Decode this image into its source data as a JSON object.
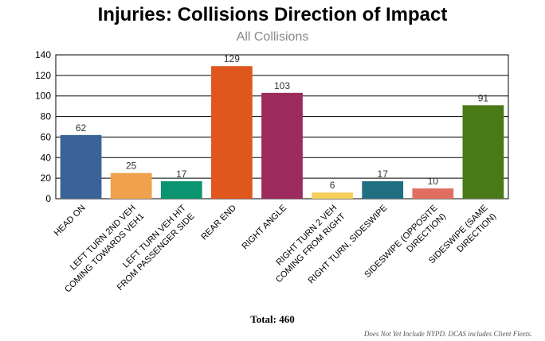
{
  "chart_data": {
    "type": "bar",
    "title": "Injuries: Collisions Direction of Impact",
    "subtitle": "All Collisions",
    "categories": [
      [
        "HEAD ON"
      ],
      [
        "LEFT TURN 2ND VEH",
        "COMING TOWARDS VEH1"
      ],
      [
        "LEFT TURN VEH HIT",
        "FROM PASSENGER SIDE"
      ],
      [
        "REAR END"
      ],
      [
        "RIGHT ANGLE"
      ],
      [
        "RIGHT TURN 2 VEH",
        "COMING FROM RIGHT"
      ],
      [
        "RIGHT TURN, SIDESWIPE"
      ],
      [
        "SIDESWIPE (OPPOSITE",
        "DIRECTION)"
      ],
      [
        "SIDESWIPE (SAME",
        "DIRECTION)"
      ]
    ],
    "values": [
      62,
      25,
      17,
      129,
      103,
      6,
      17,
      10,
      91
    ],
    "colors": [
      "#3a6398",
      "#f0a14b",
      "#0b9470",
      "#e0571e",
      "#9c2a5c",
      "#f5cf5a",
      "#1f6f80",
      "#e06f62",
      "#4a7a18"
    ],
    "ylim": [
      0,
      140
    ],
    "yticks": [
      0,
      20,
      40,
      60,
      80,
      100,
      120,
      140
    ],
    "grid": true,
    "xlabel": "",
    "ylabel": ""
  },
  "total_label": "Total: 460",
  "footnote": "Does Not Yet Include NYPD. DCAS includes Client Fleets."
}
